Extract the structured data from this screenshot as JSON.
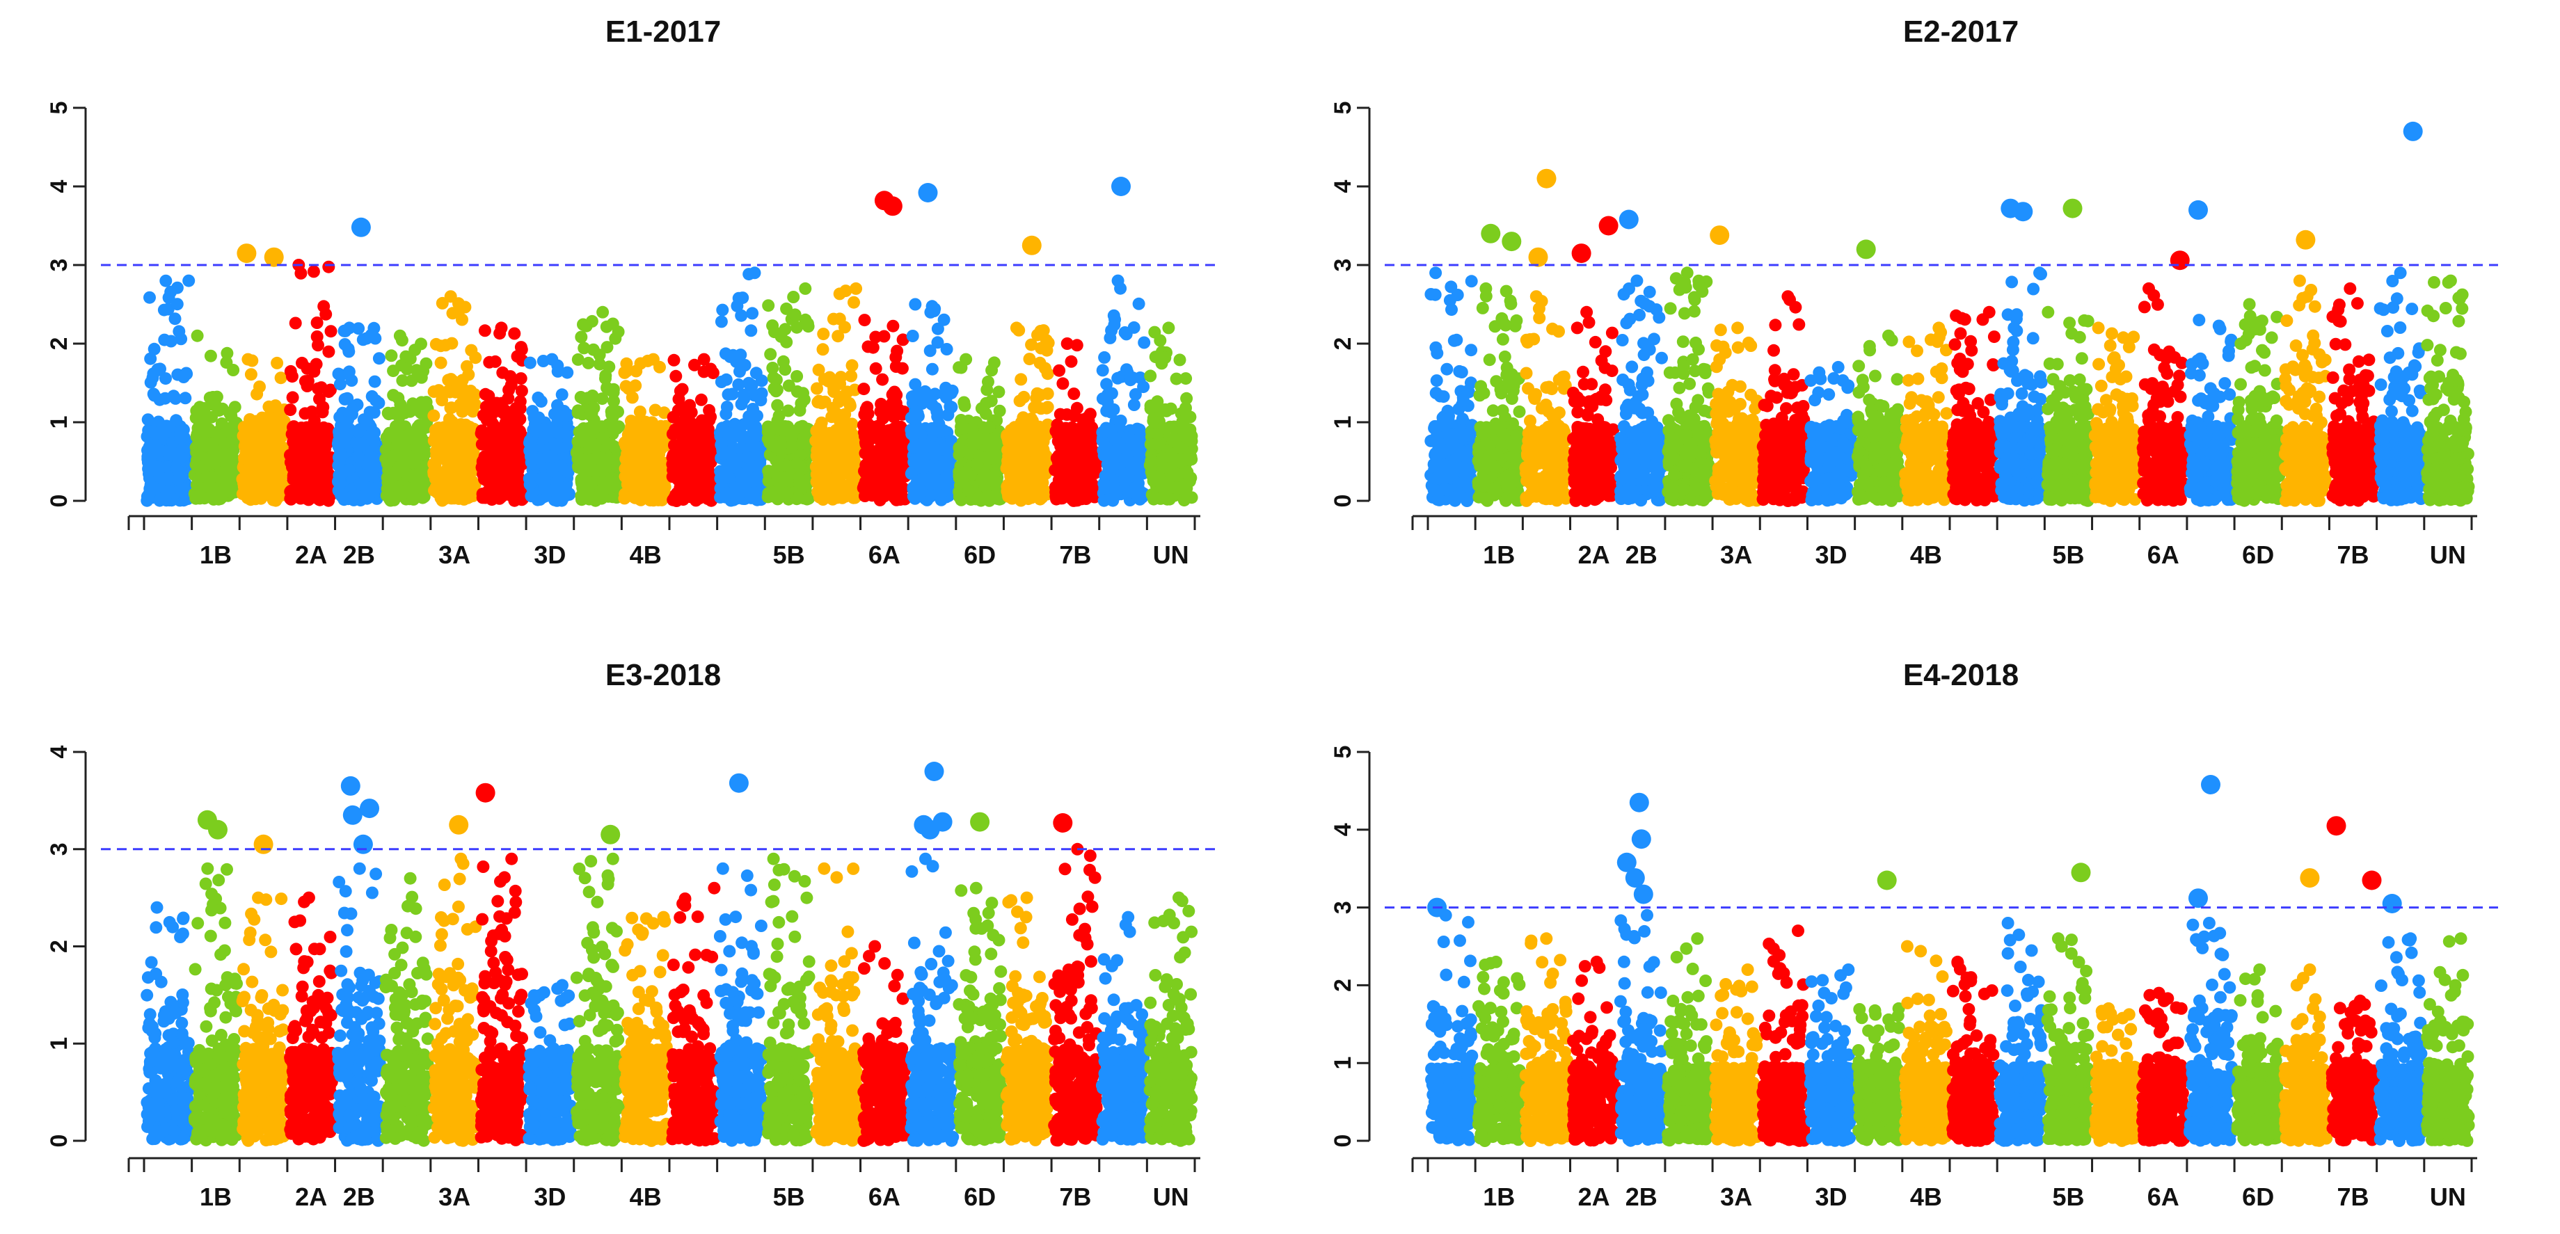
{
  "chart_data": [
    {
      "type": "scatter",
      "title": "E1-2017",
      "xlabel": "",
      "ylabel": "",
      "ylim": [
        0,
        5
      ],
      "yticks": [
        0,
        1,
        2,
        3,
        4,
        5
      ],
      "threshold": 3,
      "threshold_color": "#3c3cff",
      "chromosome_labels": [
        "1B",
        "2A",
        "2B",
        "3A",
        "3D",
        "4B",
        "5B",
        "6A",
        "6D",
        "7B",
        "UN"
      ],
      "chromosomes": [
        {
          "name": "1A",
          "color": "#1e90ff",
          "peak": 2.8,
          "seed": 11
        },
        {
          "name": "1B",
          "color": "#7ccd1e",
          "peak": 2.1,
          "seed": 12
        },
        {
          "name": "1D",
          "color": "#ffb400",
          "peak": 1.8,
          "seed": 13
        },
        {
          "name": "2A",
          "color": "#ff0000",
          "peak": 3.0,
          "seed": 14
        },
        {
          "name": "2B",
          "color": "#1e90ff",
          "peak": 2.2,
          "seed": 15
        },
        {
          "name": "2D",
          "color": "#7ccd1e",
          "peak": 2.1,
          "seed": 16
        },
        {
          "name": "3A",
          "color": "#ffb400",
          "peak": 2.6,
          "seed": 17
        },
        {
          "name": "3B",
          "color": "#ff0000",
          "peak": 2.2,
          "seed": 18
        },
        {
          "name": "3D",
          "color": "#1e90ff",
          "peak": 1.8,
          "seed": 19
        },
        {
          "name": "4A",
          "color": "#7ccd1e",
          "peak": 2.4,
          "seed": 20
        },
        {
          "name": "4B",
          "color": "#ffb400",
          "peak": 1.8,
          "seed": 21
        },
        {
          "name": "4D",
          "color": "#ff0000",
          "peak": 1.8,
          "seed": 22
        },
        {
          "name": "5A",
          "color": "#1e90ff",
          "peak": 2.9,
          "seed": 23
        },
        {
          "name": "5B",
          "color": "#7ccd1e",
          "peak": 2.7,
          "seed": 24
        },
        {
          "name": "5D",
          "color": "#ffb400",
          "peak": 2.7,
          "seed": 25
        },
        {
          "name": "6A",
          "color": "#ff0000",
          "peak": 2.3,
          "seed": 26
        },
        {
          "name": "6B",
          "color": "#1e90ff",
          "peak": 2.5,
          "seed": 27
        },
        {
          "name": "6D",
          "color": "#7ccd1e",
          "peak": 1.8,
          "seed": 28
        },
        {
          "name": "7A",
          "color": "#ffb400",
          "peak": 2.2,
          "seed": 29
        },
        {
          "name": "7B",
          "color": "#ff0000",
          "peak": 2.0,
          "seed": 30
        },
        {
          "name": "7D",
          "color": "#1e90ff",
          "peak": 2.8,
          "seed": 31
        },
        {
          "name": "UN",
          "color": "#7ccd1e",
          "peak": 2.2,
          "seed": 32
        }
      ],
      "significant_points": [
        {
          "chr": "1D",
          "pos": 0.1,
          "y": 3.15
        },
        {
          "chr": "1D",
          "pos": 0.75,
          "y": 3.1
        },
        {
          "chr": "2B",
          "pos": 0.55,
          "y": 3.48
        },
        {
          "chr": "6A",
          "pos": 0.5,
          "y": 3.82
        },
        {
          "chr": "6A",
          "pos": 0.7,
          "y": 3.75
        },
        {
          "chr": "6B",
          "pos": 0.4,
          "y": 3.92
        },
        {
          "chr": "7A",
          "pos": 0.6,
          "y": 3.25
        },
        {
          "chr": "7D",
          "pos": 0.45,
          "y": 4.0
        }
      ]
    },
    {
      "type": "scatter",
      "title": "E2-2017",
      "xlabel": "",
      "ylabel": "",
      "ylim": [
        0,
        5
      ],
      "yticks": [
        0,
        1,
        2,
        3,
        4,
        5
      ],
      "threshold": 3,
      "threshold_color": "#3c3cff",
      "chromosome_labels": [
        "1B",
        "2A",
        "2B",
        "3A",
        "3D",
        "4B",
        "5B",
        "6A",
        "6D",
        "7B",
        "UN"
      ],
      "chromosomes": [
        {
          "name": "1A",
          "color": "#1e90ff",
          "peak": 2.9,
          "seed": 41
        },
        {
          "name": "1B",
          "color": "#7ccd1e",
          "peak": 2.7,
          "seed": 42
        },
        {
          "name": "1D",
          "color": "#ffb400",
          "peak": 2.6,
          "seed": 43
        },
        {
          "name": "2A",
          "color": "#ff0000",
          "peak": 2.4,
          "seed": 44
        },
        {
          "name": "2B",
          "color": "#1e90ff",
          "peak": 2.8,
          "seed": 45
        },
        {
          "name": "2D",
          "color": "#7ccd1e",
          "peak": 2.9,
          "seed": 46
        },
        {
          "name": "3A",
          "color": "#ffb400",
          "peak": 2.2,
          "seed": 47
        },
        {
          "name": "3B",
          "color": "#ff0000",
          "peak": 2.6,
          "seed": 48
        },
        {
          "name": "3D",
          "color": "#1e90ff",
          "peak": 1.7,
          "seed": 49
        },
        {
          "name": "4A",
          "color": "#7ccd1e",
          "peak": 2.1,
          "seed": 50
        },
        {
          "name": "4B",
          "color": "#ffb400",
          "peak": 2.2,
          "seed": 51
        },
        {
          "name": "4D",
          "color": "#ff0000",
          "peak": 2.4,
          "seed": 52
        },
        {
          "name": "5A",
          "color": "#1e90ff",
          "peak": 2.9,
          "seed": 53
        },
        {
          "name": "5B",
          "color": "#7ccd1e",
          "peak": 2.4,
          "seed": 54
        },
        {
          "name": "5D",
          "color": "#ffb400",
          "peak": 2.2,
          "seed": 55
        },
        {
          "name": "6A",
          "color": "#ff0000",
          "peak": 2.7,
          "seed": 56
        },
        {
          "name": "6B",
          "color": "#1e90ff",
          "peak": 2.3,
          "seed": 57
        },
        {
          "name": "6D",
          "color": "#7ccd1e",
          "peak": 2.5,
          "seed": 58
        },
        {
          "name": "7A",
          "color": "#ffb400",
          "peak": 2.8,
          "seed": 59
        },
        {
          "name": "7B",
          "color": "#ff0000",
          "peak": 2.7,
          "seed": 60
        },
        {
          "name": "7D",
          "color": "#1e90ff",
          "peak": 2.9,
          "seed": 61
        },
        {
          "name": "UN",
          "color": "#7ccd1e",
          "peak": 2.8,
          "seed": 62
        }
      ],
      "significant_points": [
        {
          "chr": "1B",
          "pos": 0.3,
          "y": 3.4
        },
        {
          "chr": "1B",
          "pos": 0.8,
          "y": 3.3
        },
        {
          "chr": "1D",
          "pos": 0.3,
          "y": 3.1
        },
        {
          "chr": "1D",
          "pos": 0.5,
          "y": 4.1
        },
        {
          "chr": "2A",
          "pos": 0.2,
          "y": 3.15
        },
        {
          "chr": "2A",
          "pos": 0.85,
          "y": 3.5
        },
        {
          "chr": "2B",
          "pos": 0.2,
          "y": 3.58
        },
        {
          "chr": "3A",
          "pos": 0.1,
          "y": 3.38
        },
        {
          "chr": "4A",
          "pos": 0.2,
          "y": 3.2
        },
        {
          "chr": "5A",
          "pos": 0.25,
          "y": 3.72
        },
        {
          "chr": "5A",
          "pos": 0.55,
          "y": 3.68
        },
        {
          "chr": "5B",
          "pos": 0.6,
          "y": 3.72
        },
        {
          "chr": "6A",
          "pos": 0.9,
          "y": 3.06
        },
        {
          "chr": "6B",
          "pos": 0.2,
          "y": 3.7
        },
        {
          "chr": "7A",
          "pos": 0.5,
          "y": 3.32
        },
        {
          "chr": "7D",
          "pos": 0.8,
          "y": 4.7
        }
      ]
    },
    {
      "type": "scatter",
      "title": "E3-2018",
      "xlabel": "",
      "ylabel": "",
      "ylim": [
        0,
        4
      ],
      "yticks": [
        0,
        1,
        2,
        3,
        4
      ],
      "threshold": 3,
      "threshold_color": "#3c3cff",
      "chromosome_labels": [
        "1B",
        "2A",
        "2B",
        "3A",
        "3D",
        "4B",
        "5B",
        "6A",
        "6D",
        "7B",
        "UN"
      ],
      "chromosomes": [
        {
          "name": "1A",
          "color": "#1e90ff",
          "peak": 2.4,
          "seed": 71
        },
        {
          "name": "1B",
          "color": "#7ccd1e",
          "peak": 2.8,
          "seed": 72
        },
        {
          "name": "1D",
          "color": "#ffb400",
          "peak": 2.5,
          "seed": 73
        },
        {
          "name": "2A",
          "color": "#ff0000",
          "peak": 2.5,
          "seed": 74
        },
        {
          "name": "2B",
          "color": "#1e90ff",
          "peak": 2.8,
          "seed": 75
        },
        {
          "name": "2D",
          "color": "#7ccd1e",
          "peak": 2.7,
          "seed": 76
        },
        {
          "name": "3A",
          "color": "#ffb400",
          "peak": 2.9,
          "seed": 77
        },
        {
          "name": "3B",
          "color": "#ff0000",
          "peak": 2.9,
          "seed": 78
        },
        {
          "name": "3D",
          "color": "#1e90ff",
          "peak": 1.6,
          "seed": 79
        },
        {
          "name": "4A",
          "color": "#7ccd1e",
          "peak": 2.9,
          "seed": 80
        },
        {
          "name": "4B",
          "color": "#ffb400",
          "peak": 2.3,
          "seed": 81
        },
        {
          "name": "4D",
          "color": "#ff0000",
          "peak": 2.6,
          "seed": 82
        },
        {
          "name": "5A",
          "color": "#1e90ff",
          "peak": 2.8,
          "seed": 83
        },
        {
          "name": "5B",
          "color": "#7ccd1e",
          "peak": 2.9,
          "seed": 84
        },
        {
          "name": "5D",
          "color": "#ffb400",
          "peak": 2.8,
          "seed": 85
        },
        {
          "name": "6A",
          "color": "#ff0000",
          "peak": 2.0,
          "seed": 86
        },
        {
          "name": "6B",
          "color": "#1e90ff",
          "peak": 2.9,
          "seed": 87
        },
        {
          "name": "6D",
          "color": "#7ccd1e",
          "peak": 2.6,
          "seed": 88
        },
        {
          "name": "7A",
          "color": "#ffb400",
          "peak": 2.5,
          "seed": 89
        },
        {
          "name": "7B",
          "color": "#ff0000",
          "peak": 3.0,
          "seed": 90
        },
        {
          "name": "7D",
          "color": "#1e90ff",
          "peak": 2.3,
          "seed": 91
        },
        {
          "name": "UN",
          "color": "#7ccd1e",
          "peak": 2.5,
          "seed": 92
        }
      ],
      "significant_points": [
        {
          "chr": "1B",
          "pos": 0.3,
          "y": 3.3
        },
        {
          "chr": "1B",
          "pos": 0.55,
          "y": 3.2
        },
        {
          "chr": "1D",
          "pos": 0.5,
          "y": 3.05
        },
        {
          "chr": "2B",
          "pos": 0.3,
          "y": 3.65
        },
        {
          "chr": "2B",
          "pos": 0.35,
          "y": 3.35
        },
        {
          "chr": "2B",
          "pos": 0.6,
          "y": 3.05
        },
        {
          "chr": "2B",
          "pos": 0.75,
          "y": 3.42
        },
        {
          "chr": "3A",
          "pos": 0.6,
          "y": 3.25
        },
        {
          "chr": "3B",
          "pos": 0.1,
          "y": 3.58
        },
        {
          "chr": "4A",
          "pos": 0.8,
          "y": 3.15
        },
        {
          "chr": "5A",
          "pos": 0.45,
          "y": 3.68
        },
        {
          "chr": "6B",
          "pos": 0.3,
          "y": 3.25
        },
        {
          "chr": "6B",
          "pos": 0.45,
          "y": 3.2
        },
        {
          "chr": "6B",
          "pos": 0.55,
          "y": 3.8
        },
        {
          "chr": "6B",
          "pos": 0.75,
          "y": 3.28
        },
        {
          "chr": "6D",
          "pos": 0.5,
          "y": 3.28
        },
        {
          "chr": "7B",
          "pos": 0.2,
          "y": 3.27
        }
      ]
    },
    {
      "type": "scatter",
      "title": "E4-2018",
      "xlabel": "",
      "ylabel": "",
      "ylim": [
        0,
        5
      ],
      "yticks": [
        0,
        1,
        2,
        3,
        4,
        5
      ],
      "threshold": 3,
      "threshold_color": "#3c3cff",
      "chromosome_labels": [
        "1B",
        "2A",
        "2B",
        "3A",
        "3D",
        "4B",
        "5B",
        "6A",
        "6D",
        "7B",
        "UN"
      ],
      "chromosomes": [
        {
          "name": "1A",
          "color": "#1e90ff",
          "peak": 2.9,
          "seed": 101
        },
        {
          "name": "1B",
          "color": "#7ccd1e",
          "peak": 2.3,
          "seed": 102
        },
        {
          "name": "1D",
          "color": "#ffb400",
          "peak": 2.6,
          "seed": 103
        },
        {
          "name": "2A",
          "color": "#ff0000",
          "peak": 2.3,
          "seed": 104
        },
        {
          "name": "2B",
          "color": "#1e90ff",
          "peak": 2.9,
          "seed": 105
        },
        {
          "name": "2D",
          "color": "#7ccd1e",
          "peak": 2.6,
          "seed": 106
        },
        {
          "name": "3A",
          "color": "#ffb400",
          "peak": 2.2,
          "seed": 107
        },
        {
          "name": "3B",
          "color": "#ff0000",
          "peak": 2.7,
          "seed": 108
        },
        {
          "name": "3D",
          "color": "#1e90ff",
          "peak": 2.2,
          "seed": 109
        },
        {
          "name": "4A",
          "color": "#7ccd1e",
          "peak": 1.7,
          "seed": 110
        },
        {
          "name": "4B",
          "color": "#ffb400",
          "peak": 2.5,
          "seed": 111
        },
        {
          "name": "4D",
          "color": "#ff0000",
          "peak": 2.3,
          "seed": 112
        },
        {
          "name": "5A",
          "color": "#1e90ff",
          "peak": 2.8,
          "seed": 113
        },
        {
          "name": "5B",
          "color": "#7ccd1e",
          "peak": 2.6,
          "seed": 114
        },
        {
          "name": "5D",
          "color": "#ffb400",
          "peak": 1.7,
          "seed": 115
        },
        {
          "name": "6A",
          "color": "#ff0000",
          "peak": 1.9,
          "seed": 116
        },
        {
          "name": "6B",
          "color": "#1e90ff",
          "peak": 2.8,
          "seed": 117
        },
        {
          "name": "6D",
          "color": "#7ccd1e",
          "peak": 2.2,
          "seed": 118
        },
        {
          "name": "7A",
          "color": "#ffb400",
          "peak": 2.2,
          "seed": 119
        },
        {
          "name": "7B",
          "color": "#ff0000",
          "peak": 1.8,
          "seed": 120
        },
        {
          "name": "7D",
          "color": "#1e90ff",
          "peak": 2.6,
          "seed": 121
        },
        {
          "name": "UN",
          "color": "#7ccd1e",
          "peak": 2.6,
          "seed": 122
        }
      ],
      "significant_points": [
        {
          "chr": "1A",
          "pos": 0.15,
          "y": 3.0
        },
        {
          "chr": "2B",
          "pos": 0.15,
          "y": 3.58
        },
        {
          "chr": "2B",
          "pos": 0.35,
          "y": 3.38
        },
        {
          "chr": "2B",
          "pos": 0.45,
          "y": 4.35
        },
        {
          "chr": "2B",
          "pos": 0.5,
          "y": 3.88
        },
        {
          "chr": "2B",
          "pos": 0.55,
          "y": 3.17
        },
        {
          "chr": "4A",
          "pos": 0.7,
          "y": 3.35
        },
        {
          "chr": "5B",
          "pos": 0.8,
          "y": 3.45
        },
        {
          "chr": "6B",
          "pos": 0.2,
          "y": 3.12
        },
        {
          "chr": "6B",
          "pos": 0.5,
          "y": 4.58
        },
        {
          "chr": "7A",
          "pos": 0.6,
          "y": 3.38
        },
        {
          "chr": "7B",
          "pos": 0.1,
          "y": 4.05
        },
        {
          "chr": "7B",
          "pos": 0.95,
          "y": 3.35
        },
        {
          "chr": "7D",
          "pos": 0.3,
          "y": 3.05
        }
      ]
    }
  ]
}
